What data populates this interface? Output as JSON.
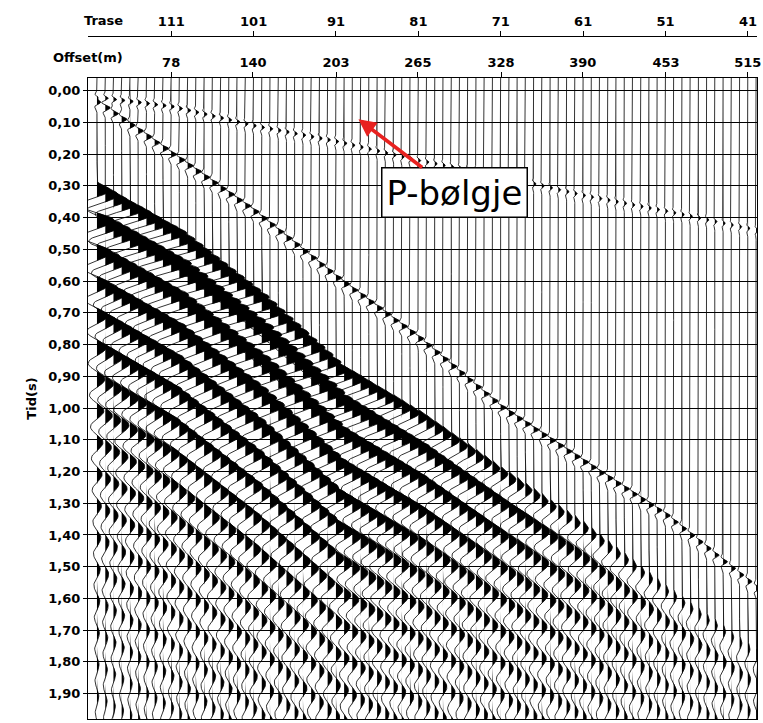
{
  "chart_data": {
    "type": "wiggle",
    "xlabel": "Offset(m)",
    "x2label": "Trase",
    "ylabel": "Tid(s)",
    "xlim": [
      15,
      522
    ],
    "xticks": [
      78,
      140,
      203,
      265,
      328,
      390,
      453,
      515
    ],
    "x2lim": [
      121.1,
      39.9
    ],
    "x2ticks": [
      111,
      101,
      91,
      81,
      71,
      61,
      51,
      41
    ],
    "ylim": [
      1.98,
      -0.04
    ],
    "yticks": [
      {
        "value": 0,
        "label": "0,00"
      },
      {
        "value": 0.1,
        "label": "0,10"
      },
      {
        "value": 0.2,
        "label": "0,20"
      },
      {
        "value": 0.3,
        "label": "0,30"
      },
      {
        "value": 0.4,
        "label": "0,40"
      },
      {
        "value": 0.5,
        "label": "0,50"
      },
      {
        "value": 0.6,
        "label": "0,60"
      },
      {
        "value": 0.7,
        "label": "0,70"
      },
      {
        "value": 0.8,
        "label": "0,80"
      },
      {
        "value": 0.9,
        "label": "0,90"
      },
      {
        "value": 1.0,
        "label": "1,00"
      },
      {
        "value": 1.1,
        "label": "1,10"
      },
      {
        "value": 1.2,
        "label": "1,20"
      },
      {
        "value": 1.3,
        "label": "1,30"
      },
      {
        "value": 1.4,
        "label": "1,40"
      },
      {
        "value": 1.5,
        "label": "1,50"
      },
      {
        "value": 1.6,
        "label": "1,60"
      },
      {
        "value": 1.7,
        "label": "1,70"
      },
      {
        "value": 1.8,
        "label": "1,80"
      },
      {
        "value": 1.9,
        "label": "1,90"
      }
    ],
    "grid": true,
    "color": "#000000",
    "offsets": [
      21.8,
      28.1,
      34.3,
      40.5,
      46.8,
      53.0,
      59.3,
      65.5,
      71.8,
      78.0,
      84.2,
      90.5,
      96.7,
      103.0,
      109.2,
      115.5,
      121.7,
      127.9,
      134.2,
      140.4,
      146.7,
      152.9,
      159.2,
      165.4,
      171.6,
      177.9,
      184.1,
      190.4,
      196.6,
      202.9,
      209.1,
      215.3,
      221.6,
      227.8,
      234.1,
      240.3,
      246.6,
      252.8,
      259.0,
      265.3,
      271.5,
      277.8,
      284.0,
      290.3,
      296.5,
      302.7,
      309.0,
      315.2,
      321.5,
      327.7,
      334.0,
      340.2,
      346.4,
      352.7,
      358.9,
      365.2,
      371.4,
      377.7,
      383.9,
      390.2,
      396.4,
      402.6,
      408.9,
      415.1,
      421.4,
      427.6,
      433.9,
      440.1,
      446.3,
      452.6,
      458.8,
      465.1,
      471.3,
      477.6,
      483.8,
      490.0,
      496.3,
      502.5,
      508.8,
      515.0,
      521.3
    ],
    "events": [
      {
        "type": "ricker",
        "x": [
          20,
          78,
          140,
          203,
          265,
          328,
          390,
          453,
          522
        ],
        "t": [
          0.02,
          0.05,
          0.11,
          0.16,
          0.22,
          0.27,
          0.33,
          0.38,
          0.44
        ],
        "amplitude": [
          0.4,
          0.4,
          0.35,
          0.35,
          0.3,
          0.3,
          0.3,
          0.3,
          0.25
        ],
        "period": 0.03
      },
      {
        "type": "ricker",
        "x": [
          20,
          78,
          140,
          203,
          265,
          328,
          390,
          453,
          522
        ],
        "t": [
          0.03,
          0.2,
          0.38,
          0.59,
          0.78,
          1.0,
          1.17,
          1.34,
          1.57
        ],
        "amplitude": [
          0.6,
          0.7,
          0.7,
          0.7,
          0.7,
          0.7,
          0.7,
          0.6,
          0.5
        ],
        "period": 0.04
      },
      {
        "type": "train",
        "x": [
          20,
          78,
          140,
          203,
          265,
          328,
          390,
          453,
          522
        ],
        "t": [
          0.28,
          0.42,
          0.62,
          0.85,
          1.0,
          1.18,
          1.35,
          1.55,
          1.75
        ],
        "amplitude": [
          2.5,
          3,
          3,
          2.5,
          1.8,
          1.4,
          1.0,
          0.6,
          0.4
        ],
        "period": 0.1,
        "duration": 2.0
      }
    ],
    "annotations": [
      {
        "text": "P-bølgje",
        "x": 293,
        "y": 0.32,
        "arrow_x": 220,
        "arrow_y": 0.09,
        "color": "#e8211f"
      }
    ]
  }
}
